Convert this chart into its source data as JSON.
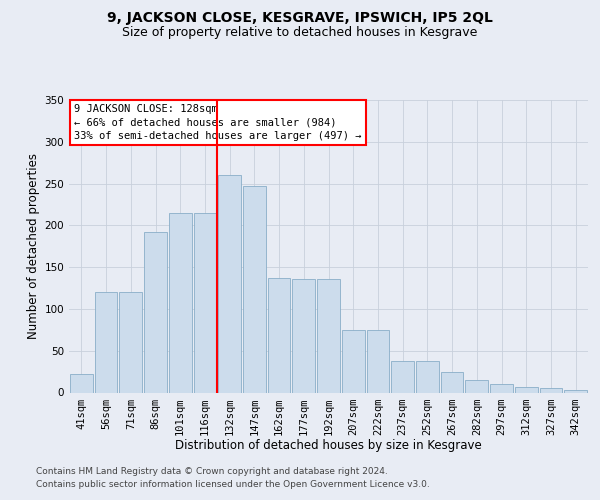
{
  "title": "9, JACKSON CLOSE, KESGRAVE, IPSWICH, IP5 2QL",
  "subtitle": "Size of property relative to detached houses in Kesgrave",
  "xlabel": "Distribution of detached houses by size in Kesgrave",
  "ylabel": "Number of detached properties",
  "categories": [
    "41sqm",
    "56sqm",
    "71sqm",
    "86sqm",
    "101sqm",
    "116sqm",
    "132sqm",
    "147sqm",
    "162sqm",
    "177sqm",
    "192sqm",
    "207sqm",
    "222sqm",
    "237sqm",
    "252sqm",
    "267sqm",
    "282sqm",
    "297sqm",
    "312sqm",
    "327sqm",
    "342sqm"
  ],
  "values": [
    22,
    120,
    120,
    192,
    215,
    215,
    260,
    247,
    137,
    136,
    136,
    75,
    75,
    38,
    38,
    25,
    15,
    10,
    7,
    5,
    3
  ],
  "bar_color": "#ccdcec",
  "bar_edge_color": "#8aaec8",
  "grid_color": "#c8d0dc",
  "background_color": "#e8ecf4",
  "vline_index": 6,
  "vline_color": "red",
  "annotation_text": "9 JACKSON CLOSE: 128sqm\n← 66% of detached houses are smaller (984)\n33% of semi-detached houses are larger (497) →",
  "annotation_box_facecolor": "white",
  "annotation_box_edgecolor": "red",
  "ylim_max": 350,
  "yticks": [
    0,
    50,
    100,
    150,
    200,
    250,
    300,
    350
  ],
  "footer_line1": "Contains HM Land Registry data © Crown copyright and database right 2024.",
  "footer_line2": "Contains public sector information licensed under the Open Government Licence v3.0.",
  "title_fontsize": 10,
  "subtitle_fontsize": 9,
  "xlabel_fontsize": 8.5,
  "ylabel_fontsize": 8.5,
  "tick_fontsize": 7.5,
  "annot_fontsize": 7.5,
  "footer_fontsize": 6.5
}
